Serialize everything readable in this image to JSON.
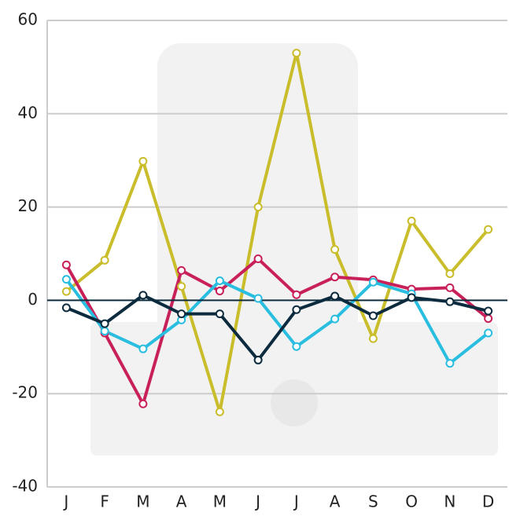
{
  "chart_data": {
    "type": "line",
    "categories": [
      "J",
      "F",
      "M",
      "A",
      "M",
      "J",
      "J",
      "A",
      "S",
      "O",
      "N",
      "D"
    ],
    "series": [
      {
        "color": "#c9bd2b",
        "values": [
          1.9,
          8.6,
          29.8,
          3,
          -23.9,
          20,
          53,
          10.9,
          -8.2,
          17,
          5.7,
          15.2
        ]
      },
      {
        "color": "#c8215a",
        "values": [
          7.6,
          -7,
          -22.2,
          6.4,
          2,
          8.9,
          1.2,
          5,
          4.4,
          2.4,
          2.7,
          -3.9
        ]
      },
      {
        "color": "#29bde0",
        "values": [
          4.5,
          -6.6,
          -10.4,
          -4.2,
          4.2,
          0.4,
          -9.9,
          -4,
          3.9,
          1.4,
          -13.5,
          -7
        ]
      },
      {
        "color": "#0d2b3e",
        "values": [
          -1.6,
          -5,
          1.1,
          -2.9,
          -2.9,
          -12.8,
          -2,
          0.9,
          -3.3,
          0.6,
          -0.3,
          -2.3
        ]
      }
    ],
    "ylim": [
      -40,
      60
    ],
    "yticks": [
      -40,
      -20,
      0,
      20,
      40,
      60
    ],
    "grid": true
  }
}
